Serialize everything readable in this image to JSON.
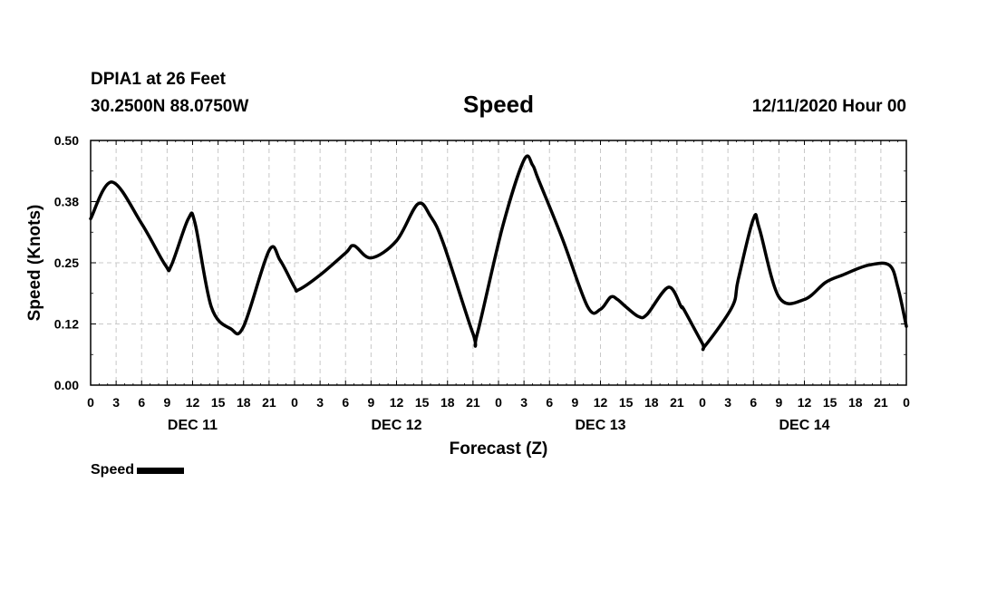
{
  "header": {
    "station": "DPIA1 at 26 Feet",
    "coords": "30.2500N 88.0750W",
    "title": "Speed",
    "run": "12/11/2020 Hour 00"
  },
  "chart_data": {
    "type": "line",
    "title": "Speed",
    "xlabel": "Forecast (Z)",
    "ylabel": "Speed (Knots)",
    "xlim": [
      0,
      96
    ],
    "ylim": [
      0,
      0.5
    ],
    "yticks": [
      "0.00",
      "0.12",
      "0.25",
      "0.38",
      "0.50"
    ],
    "xtick_labels": [
      "0",
      "3",
      "6",
      "9",
      "12",
      "15",
      "18",
      "21",
      "0",
      "3",
      "6",
      "9",
      "12",
      "15",
      "18",
      "21",
      "0",
      "3",
      "6",
      "9",
      "12",
      "15",
      "18",
      "21",
      "0",
      "3",
      "6",
      "9",
      "12",
      "15",
      "18",
      "21",
      "0"
    ],
    "days": [
      {
        "label": "DEC 11",
        "hour": 12
      },
      {
        "label": "DEC 12",
        "hour": 36
      },
      {
        "label": "DEC 13",
        "hour": 60
      },
      {
        "label": "DEC 14",
        "hour": 84
      }
    ],
    "grid": true,
    "legend_position": "bottom-left",
    "series": [
      {
        "name": "Speed",
        "color": "#000000",
        "x": [
          0,
          2.5,
          6,
          8.8,
          9.5,
          11.5,
          12.3,
          14.2,
          16.5,
          18,
          21,
          22.3,
          24,
          24.5,
          27,
          30,
          31,
          33,
          36,
          38.5,
          40,
          41.5,
          45,
          45.5,
          48.5,
          51,
          52,
          52.7,
          55.5,
          58.5,
          60,
          61.2,
          62,
          63,
          64.5,
          65.5,
          68,
          69.5,
          69.8,
          72,
          72.3,
          75.5,
          76.2,
          78,
          78.7,
          81,
          84,
          86.5,
          88.5,
          91.5,
          94,
          95,
          96
        ],
        "y": [
          0.34,
          0.415,
          0.33,
          0.245,
          0.245,
          0.34,
          0.33,
          0.16,
          0.115,
          0.12,
          0.275,
          0.255,
          0.2,
          0.195,
          0.225,
          0.27,
          0.285,
          0.26,
          0.295,
          0.37,
          0.345,
          0.29,
          0.105,
          0.105,
          0.325,
          0.46,
          0.45,
          0.42,
          0.3,
          0.16,
          0.155,
          0.18,
          0.175,
          0.16,
          0.14,
          0.145,
          0.2,
          0.16,
          0.155,
          0.085,
          0.08,
          0.16,
          0.215,
          0.34,
          0.32,
          0.18,
          0.175,
          0.21,
          0.225,
          0.245,
          0.245,
          0.2,
          0.12
        ]
      }
    ]
  },
  "legend": {
    "label": "Speed"
  }
}
